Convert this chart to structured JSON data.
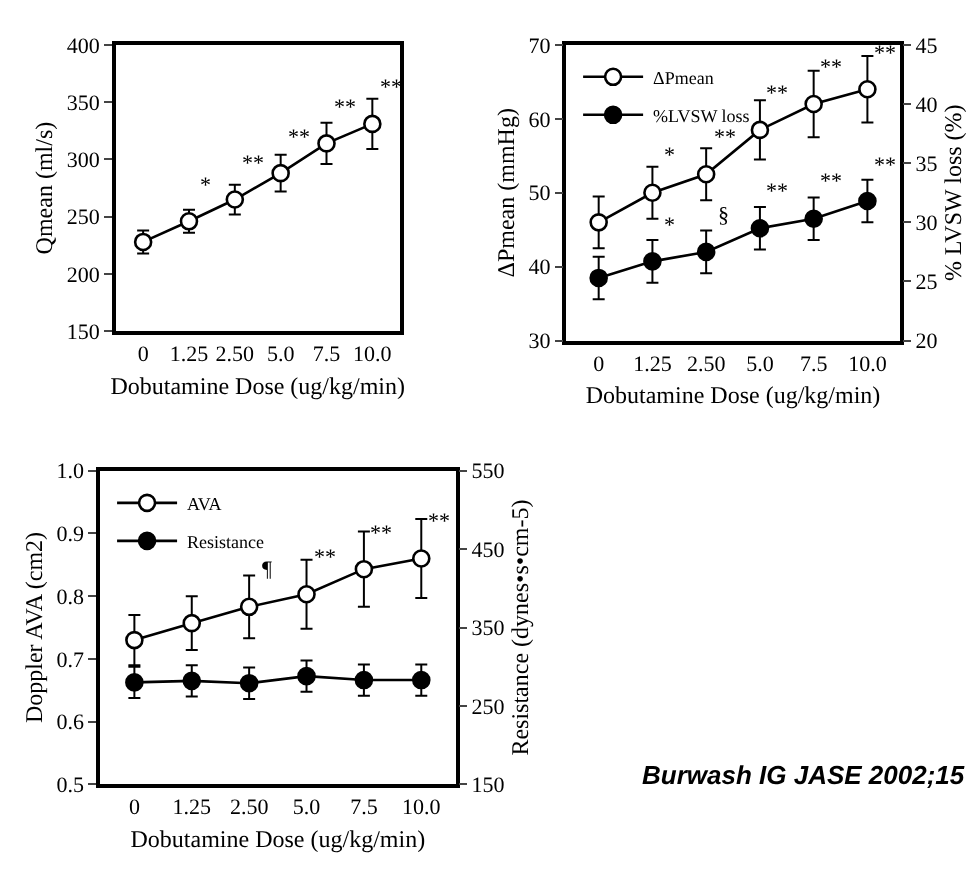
{
  "chart_data": [
    {
      "type": "line",
      "xlabel": "Dobutamine Dose (ug/kg/min)",
      "ylabel": "Qmean (ml/s)",
      "categories": [
        "0",
        "1.25",
        "2.50",
        "5.0",
        "7.5",
        "10.0"
      ],
      "series": [
        {
          "color": "#000000",
          "values": [
            228,
            246,
            265,
            288,
            314,
            331
          ],
          "errors": [
            10,
            10,
            13,
            16,
            18,
            22
          ]
        }
      ],
      "ylim": [
        150,
        400
      ],
      "yticks": [
        150,
        200,
        250,
        300,
        350,
        400
      ],
      "marker": "circle",
      "legend": false,
      "annotations": [
        {
          "text": "*",
          "x": "1.25",
          "y": 246
        },
        {
          "text": "**",
          "x": "2.50",
          "y": 265
        },
        {
          "text": "**",
          "x": "5.0",
          "y": 288
        },
        {
          "text": "**",
          "x": "7.5",
          "y": 314
        },
        {
          "text": "**",
          "x": "10.0",
          "y": 331
        }
      ]
    },
    {
      "type": "line",
      "xlabel": "Dobutamine Dose (ug/kg/min)",
      "ylabel": "ΔPmean (mmHg)",
      "y2label": "% LVSW loss (%)",
      "categories": [
        "0",
        "1.25",
        "2.50",
        "5.0",
        "7.5",
        "10.0"
      ],
      "series": [
        {
          "name": "ΔPmean",
          "color": "#000000",
          "values": [
            46,
            50,
            52.5,
            58.5,
            62,
            64
          ],
          "errors": [
            3.5,
            3.5,
            3.5,
            4,
            4.5,
            4.5
          ]
        },
        {
          "name": "%LVSW loss",
          "color": "#000000",
          "axis": "y2",
          "values": [
            25.3,
            26.7,
            27.5,
            29.5,
            30.3,
            31.8
          ],
          "errors": [
            1.8,
            1.8,
            1.8,
            1.8,
            1.8,
            1.8
          ]
        }
      ],
      "ylim": [
        30,
        70
      ],
      "yticks": [
        30,
        40,
        50,
        60,
        70
      ],
      "y2lim": [
        20,
        45
      ],
      "y2ticks": [
        20,
        25,
        30,
        35,
        40,
        45
      ],
      "marker": "circle",
      "legend": "top left",
      "annotations": [
        {
          "text": "*",
          "x": "1.25",
          "y": 50
        },
        {
          "text": "**",
          "x": "2.50",
          "y": 52.5
        },
        {
          "text": "**",
          "x": "5.0",
          "y": 58.5
        },
        {
          "text": "**",
          "x": "7.5",
          "y": 62
        },
        {
          "text": "**",
          "x": "10.0",
          "y": 64
        },
        {
          "text": "*",
          "x": "1.25",
          "y": 40.72
        },
        {
          "text": "§",
          "x": "2.50",
          "y": 42
        },
        {
          "text": "**",
          "x": "5.0",
          "y": 45.2
        },
        {
          "text": "**",
          "x": "7.5",
          "y": 46.48
        },
        {
          "text": "**",
          "x": "10.0",
          "y": 48.88
        }
      ]
    },
    {
      "type": "line",
      "xlabel": "Dobutamine Dose (ug/kg/min)",
      "ylabel": "Doppler AVA (cm2)",
      "y2label": "Resistance (dynes•s•cm-5)",
      "categories": [
        "0",
        "1.25",
        "2.50",
        "5.0",
        "7.5",
        "10.0"
      ],
      "series": [
        {
          "name": "AVA",
          "color": "#000000",
          "values": [
            0.73,
            0.757,
            0.783,
            0.803,
            0.843,
            0.86
          ],
          "errors": [
            0.04,
            0.043,
            0.05,
            0.055,
            0.06,
            0.063
          ]
        },
        {
          "name": "Resistance",
          "color": "#000000",
          "axis": "y2",
          "values": [
            280,
            282,
            279,
            288,
            283,
            283
          ],
          "errors": [
            20,
            20,
            20,
            20,
            20,
            20
          ]
        }
      ],
      "ylim": [
        0.5,
        1.0
      ],
      "yticks": [
        {
          "value": 0.5,
          "label": "0.5"
        },
        {
          "value": 0.6,
          "label": "0.6"
        },
        {
          "value": 0.7,
          "label": "0.7"
        },
        {
          "value": 0.8,
          "label": "0.8"
        },
        {
          "value": 0.9,
          "label": "0.9"
        },
        {
          "value": 1.0,
          "label": "1.0"
        }
      ],
      "y2lim": [
        150,
        550
      ],
      "y2ticks": [
        150,
        250,
        350,
        450,
        550
      ],
      "marker": "circle",
      "legend": "top left",
      "annotations": [
        {
          "text": "¶",
          "x": "2.50",
          "y": 0.783
        },
        {
          "text": "**",
          "x": "5.0",
          "y": 0.803
        },
        {
          "text": "**",
          "x": "7.5",
          "y": 0.843
        },
        {
          "text": "**",
          "x": "10.0",
          "y": 0.86
        },
        "Burwash IG JASE 2002;15"
      ]
    }
  ]
}
